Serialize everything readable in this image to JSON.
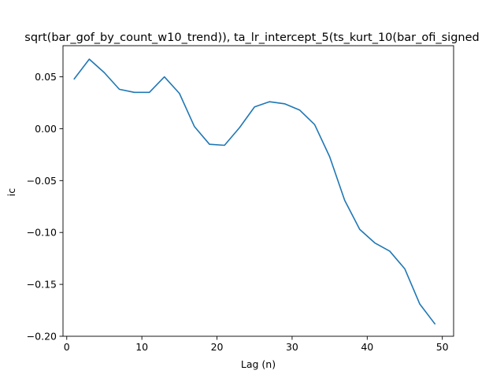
{
  "chart_data": {
    "type": "line",
    "title": "sqrt(bar_gof_by_count_w10_trend)), ta_lr_intercept_5(ts_kurt_10(bar_ofi_signed",
    "xlabel": "Lag (n)",
    "ylabel": "ic",
    "xlim": [
      -0.5,
      51.5
    ],
    "ylim": [
      -0.2,
      0.08
    ],
    "xticks": [
      0,
      10,
      20,
      30,
      40,
      50
    ],
    "xtick_labels": [
      "0",
      "10",
      "20",
      "30",
      "40",
      "50"
    ],
    "yticks": [
      0.05,
      0.0,
      -0.05,
      -0.1,
      -0.15,
      -0.2
    ],
    "ytick_labels": [
      "0.05",
      "0.00",
      "−0.05",
      "−0.10",
      "−0.15",
      "−0.20"
    ],
    "grid": false,
    "series": [
      {
        "color": "#1f77b4",
        "x": [
          1,
          3,
          5,
          7,
          9,
          11,
          13,
          15,
          17,
          19,
          21,
          23,
          25,
          27,
          29,
          31,
          33,
          35,
          37,
          39,
          41,
          43,
          45,
          47,
          49
        ],
        "y": [
          0.048,
          0.067,
          0.054,
          0.038,
          0.035,
          0.035,
          0.05,
          0.034,
          0.002,
          -0.015,
          -0.016,
          0.001,
          0.021,
          0.026,
          0.024,
          0.018,
          0.004,
          -0.027,
          -0.069,
          -0.097,
          -0.11,
          -0.118,
          -0.135,
          -0.169,
          -0.188
        ]
      }
    ]
  }
}
